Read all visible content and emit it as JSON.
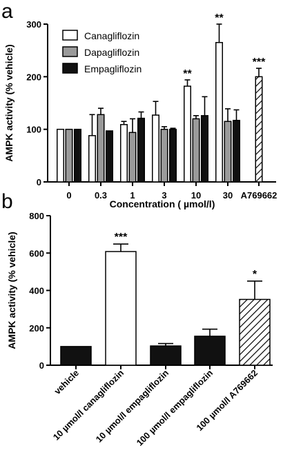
{
  "figure": {
    "panel_a_label": "a",
    "panel_b_label": "b"
  },
  "chart_data": [
    {
      "type": "bar",
      "panel": "a",
      "xlabel": "Concentration ( µmol/l)",
      "ylabel": "AMPK activity (% vehicle)",
      "ylim": [
        0,
        300
      ],
      "yticks": [
        0,
        100,
        200,
        300
      ],
      "categories": [
        "0",
        "0.3",
        "1",
        "3",
        "10",
        "30",
        "A769662"
      ],
      "series": [
        {
          "name": "Canagliflozin",
          "fill": "#ffffff",
          "values": [
            100,
            88,
            109,
            127,
            182,
            265,
            null
          ],
          "errors": [
            0,
            40,
            6,
            26,
            12,
            35,
            null
          ],
          "significance": [
            "",
            "",
            "",
            "",
            "**",
            "**",
            ""
          ]
        },
        {
          "name": "Dapagliflozin",
          "fill": "#9a9a9a",
          "values": [
            100,
            128,
            94,
            100,
            120,
            115,
            null
          ],
          "errors": [
            0,
            12,
            26,
            5,
            6,
            24,
            null
          ],
          "significance": [
            "",
            "",
            "",
            "",
            "",
            "",
            ""
          ]
        },
        {
          "name": "Empagliflozin",
          "fill": "#111111",
          "values": [
            100,
            97,
            121,
            100,
            126,
            117,
            null
          ],
          "errors": [
            0,
            0,
            12,
            2,
            36,
            20,
            null
          ],
          "significance": [
            "",
            "",
            "",
            "",
            "",
            "",
            ""
          ]
        }
      ],
      "reference": {
        "category": "A769662",
        "value": 200,
        "error": 16,
        "pattern": "hatched",
        "significance": "***"
      },
      "legend": "top-left",
      "grid": false
    },
    {
      "type": "bar",
      "panel": "b",
      "xlabel": "",
      "ylabel": "AMPK activity (% vehicle)",
      "ylim": [
        0,
        800
      ],
      "yticks": [
        0,
        200,
        400,
        600,
        800
      ],
      "categories": [
        "vehicle",
        "10 µmol/l canagliflozin",
        "10 µmol/l empagliflozin",
        "100 µmol/l empagliflozin",
        "100 µmol/l A769662"
      ],
      "values": [
        100,
        608,
        103,
        155,
        352
      ],
      "errors": [
        0,
        40,
        13,
        38,
        98
      ],
      "fills": [
        "#111111",
        "#ffffff",
        "#111111",
        "#111111",
        "hatched"
      ],
      "significance": [
        "",
        "***",
        "",
        "",
        "*"
      ],
      "grid": false
    }
  ]
}
